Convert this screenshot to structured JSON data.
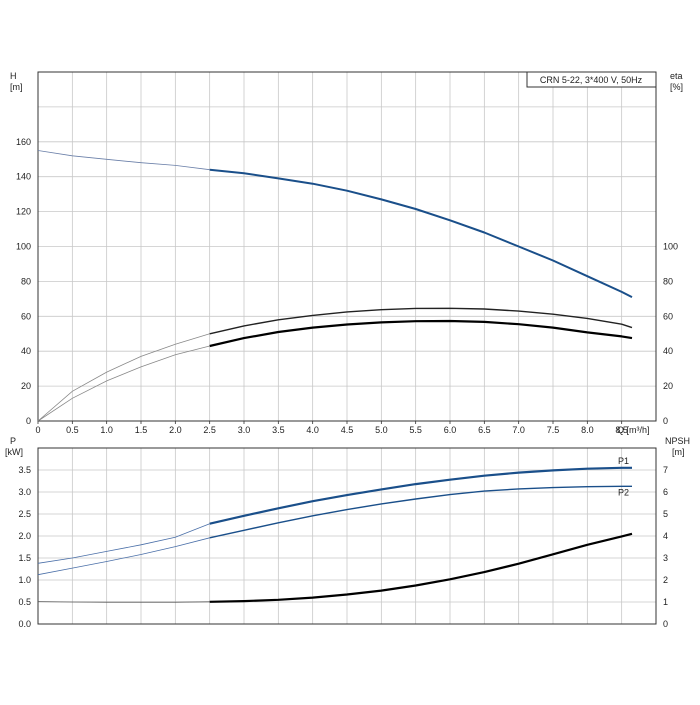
{
  "chart_data": [
    {
      "type": "line",
      "title": "CRN 5-22, 3*400 V, 50Hz",
      "xlabel": "Q [m³/h]",
      "ylabel": "H\n[m]",
      "ylabel_right": "eta\n[%]",
      "xlim": [
        0,
        9.0
      ],
      "ylim": [
        0,
        200
      ],
      "ylim_right": [
        0,
        200
      ],
      "x_ticks": [
        "0",
        "0.5",
        "1.0",
        "1.5",
        "2.0",
        "2.5",
        "3.0",
        "3.5",
        "4.0",
        "4.5",
        "5.0",
        "5.5",
        "6.0",
        "6.5",
        "7.0",
        "7.5",
        "8.0",
        "8.5"
      ],
      "y_ticks": [
        "0",
        "20",
        "40",
        "60",
        "80",
        "100",
        "120",
        "140",
        "160"
      ],
      "y_ticks_right": [
        "0",
        "20",
        "40",
        "60",
        "80",
        "100"
      ],
      "grid": true,
      "legend": "none",
      "series": [
        {
          "key": "H",
          "axis": "left",
          "color": "#1a4f8a",
          "x": [
            0,
            0.5,
            1.0,
            1.5,
            2.0,
            2.5,
            3.0,
            3.5,
            4.0,
            4.5,
            5.0,
            5.5,
            6.0,
            6.5,
            7.0,
            7.5,
            8.0,
            8.5,
            8.65
          ],
          "y": [
            155,
            152,
            150,
            148,
            146.5,
            144,
            142,
            139,
            136,
            132,
            127,
            121.5,
            115,
            108,
            100,
            92,
            83,
            74,
            71
          ]
        },
        {
          "key": "eta1",
          "axis": "right",
          "color": "#222222",
          "x": [
            0,
            0.5,
            1.0,
            1.5,
            2.0,
            2.5,
            3.0,
            3.5,
            4.0,
            4.5,
            5.0,
            5.5,
            6.0,
            6.5,
            7.0,
            7.5,
            8.0,
            8.5,
            8.65
          ],
          "y": [
            0,
            17,
            28,
            37,
            44,
            50,
            54.5,
            58,
            60.5,
            62.5,
            63.8,
            64.5,
            64.6,
            64.2,
            63,
            61.2,
            58.8,
            55.5,
            53.5
          ]
        },
        {
          "key": "eta2",
          "axis": "right",
          "color": "#000000",
          "x": [
            0,
            0.5,
            1.0,
            1.5,
            2.0,
            2.5,
            3.0,
            3.5,
            4.0,
            4.5,
            5.0,
            5.5,
            6.0,
            6.5,
            7.0,
            7.5,
            8.0,
            8.5,
            8.65
          ],
          "y": [
            0,
            13,
            23,
            31,
            38,
            43,
            47.5,
            51,
            53.5,
            55.3,
            56.5,
            57.2,
            57.3,
            56.8,
            55.5,
            53.5,
            50.8,
            48.5,
            47.5
          ]
        }
      ]
    },
    {
      "type": "line",
      "title": "",
      "xlabel": "",
      "ylabel": "P\n[kW]",
      "ylabel_right": "NPSH\n[m]",
      "xlim": [
        0,
        9.0
      ],
      "ylim": [
        0,
        4.0
      ],
      "ylim_right": [
        0,
        8
      ],
      "y_ticks": [
        "0.0",
        "0.5",
        "1.0",
        "1.5",
        "2.0",
        "2.5",
        "3.0",
        "3.5"
      ],
      "y_ticks_right": [
        "0",
        "1",
        "2",
        "3",
        "4",
        "5",
        "6",
        "7"
      ],
      "grid": true,
      "legend": "none",
      "series": [
        {
          "key": "P1",
          "name": "P1",
          "axis": "left",
          "color": "#1a4f8a",
          "x": [
            0,
            0.5,
            1.0,
            1.5,
            2.0,
            2.5,
            3.0,
            3.5,
            4.0,
            4.5,
            5.0,
            5.5,
            6.0,
            6.5,
            7.0,
            7.5,
            8.0,
            8.5,
            8.65
          ],
          "y": [
            1.38,
            1.5,
            1.65,
            1.8,
            1.97,
            2.28,
            2.46,
            2.63,
            2.79,
            2.93,
            3.06,
            3.18,
            3.28,
            3.37,
            3.44,
            3.49,
            3.53,
            3.55,
            3.55
          ]
        },
        {
          "key": "P2",
          "name": "P2",
          "axis": "left",
          "color": "#1a4f8a",
          "x": [
            0,
            0.5,
            1.0,
            1.5,
            2.0,
            2.5,
            3.0,
            3.5,
            4.0,
            4.5,
            5.0,
            5.5,
            6.0,
            6.5,
            7.0,
            7.5,
            8.0,
            8.5,
            8.65
          ],
          "y": [
            1.12,
            1.27,
            1.42,
            1.58,
            1.76,
            1.96,
            2.13,
            2.3,
            2.46,
            2.6,
            2.73,
            2.84,
            2.94,
            3.02,
            3.07,
            3.1,
            3.12,
            3.13,
            3.13
          ]
        },
        {
          "key": "NPSH",
          "axis": "right",
          "color": "#000000",
          "x": [
            0,
            0.5,
            1.0,
            1.5,
            2.0,
            2.5,
            3.0,
            3.5,
            4.0,
            4.5,
            5.0,
            5.5,
            6.0,
            6.5,
            7.0,
            7.5,
            8.0,
            8.5,
            8.65
          ],
          "y": [
            1.02,
            1.0,
            0.99,
            0.99,
            0.99,
            1.01,
            1.04,
            1.1,
            1.2,
            1.34,
            1.52,
            1.75,
            2.03,
            2.36,
            2.74,
            3.17,
            3.6,
            3.98,
            4.1
          ]
        }
      ]
    }
  ]
}
